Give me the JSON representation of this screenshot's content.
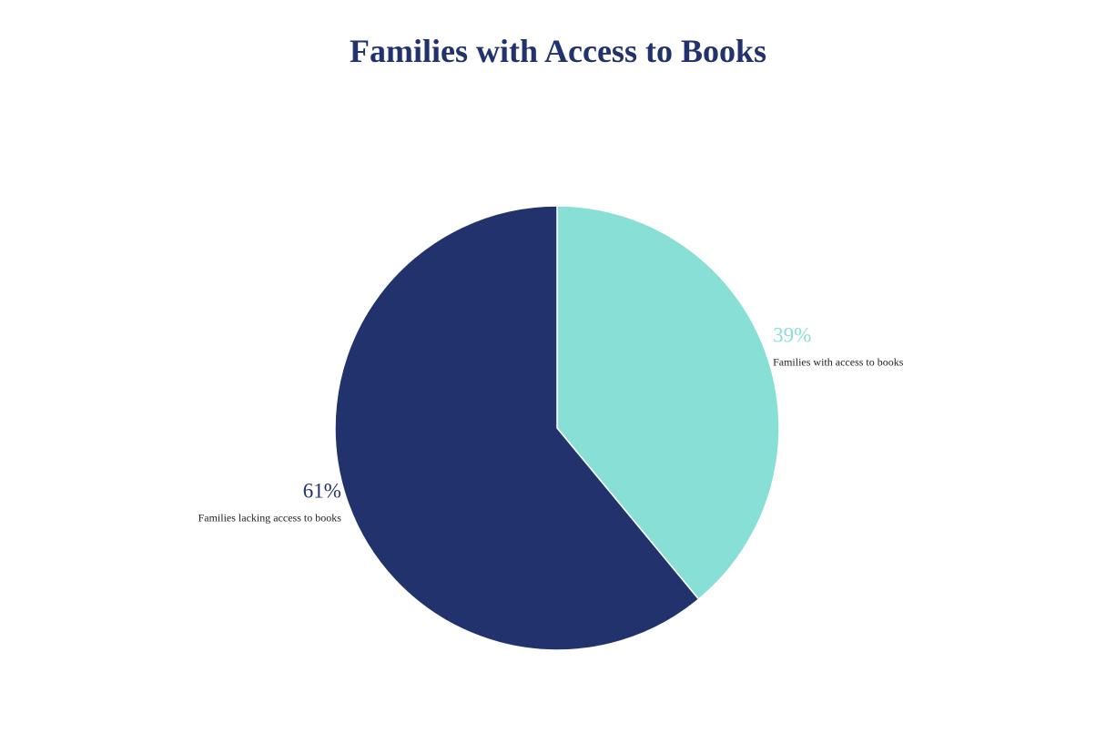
{
  "chart_data": {
    "type": "pie",
    "title": "Families with Access to Books",
    "slices": [
      {
        "label": "Families with access to books",
        "value": 39,
        "value_label": "39%",
        "color": "#88DFD5"
      },
      {
        "label": "Families lacking access to books",
        "value": 61,
        "value_label": "61%",
        "color": "#22326C"
      }
    ],
    "title_color": "#22326C",
    "start": "12 o'clock",
    "direction": "clockwise"
  }
}
